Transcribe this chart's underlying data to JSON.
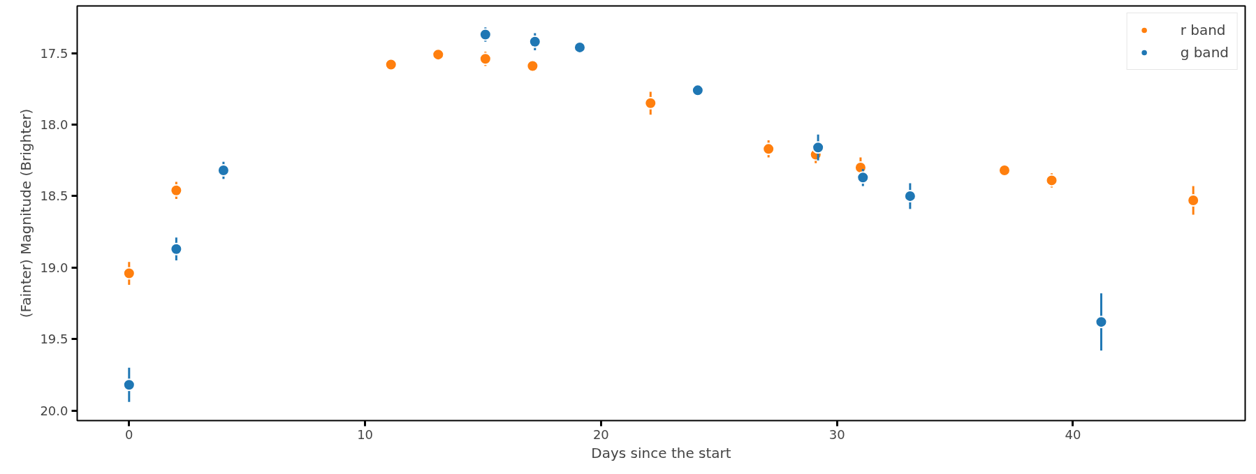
{
  "chart_data": {
    "type": "scatter",
    "xlabel": "Days since the start",
    "ylabel": "(Fainter) Magnitude (Brighter)",
    "xlim": [
      -2.2,
      47.3
    ],
    "ylim": [
      20.07,
      17.17
    ],
    "xticks": [
      0,
      10,
      20,
      30,
      40
    ],
    "yticks": [
      {
        "value": 17.5,
        "label": "17.5"
      },
      {
        "value": 18,
        "label": "18.0"
      },
      {
        "value": 18.5,
        "label": "18.5"
      },
      {
        "value": 19,
        "label": "19.0"
      },
      {
        "value": 19.5,
        "label": "19.5"
      },
      {
        "value": 20,
        "label": "20.0"
      }
    ],
    "grid": false,
    "legend": "top right",
    "marker": "circle",
    "series": [
      {
        "name": "r band",
        "color": "#ff7f0e",
        "x": [
          0,
          2,
          11.1,
          13.1,
          15.1,
          17.1,
          22.1,
          27.1,
          29.1,
          31,
          37.1,
          39.1,
          45.1
        ],
        "values": [
          19.04,
          18.46,
          17.58,
          17.51,
          17.54,
          17.59,
          17.85,
          18.17,
          18.21,
          18.3,
          18.32,
          18.39,
          18.53
        ],
        "errors": [
          0.08,
          0.06,
          0.02,
          0.02,
          0.05,
          0.02,
          0.08,
          0.06,
          0.06,
          0.07,
          0.04,
          0.05,
          0.1
        ]
      },
      {
        "name": "g band",
        "color": "#1f77b4",
        "x": [
          0,
          2,
          4,
          15.1,
          17.2,
          19.1,
          24.1,
          29.2,
          31.1,
          33.1,
          41.2
        ],
        "values": [
          19.82,
          18.87,
          18.32,
          17.37,
          17.42,
          17.46,
          17.76,
          18.16,
          18.37,
          18.5,
          19.38
        ],
        "errors": [
          0.12,
          0.08,
          0.06,
          0.05,
          0.06,
          0.02,
          0.04,
          0.09,
          0.06,
          0.09,
          0.2
        ]
      }
    ]
  }
}
